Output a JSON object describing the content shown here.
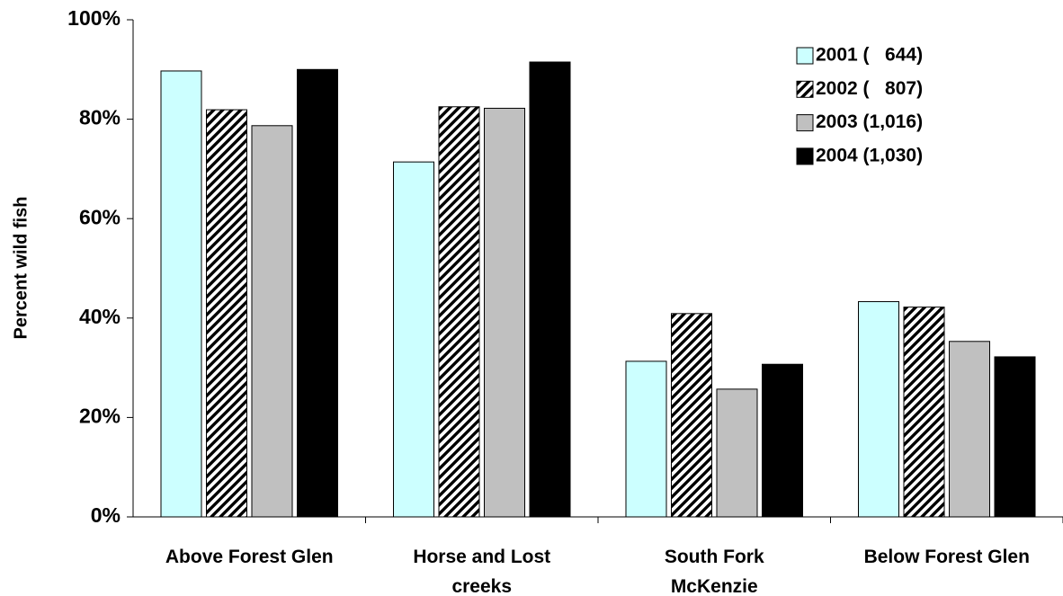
{
  "chart_data": {
    "type": "bar",
    "categories": [
      [
        "Above Forest Glen"
      ],
      [
        "Horse and Lost",
        "creeks"
      ],
      [
        "South Fork",
        "McKenzie"
      ],
      [
        "Below Forest Glen"
      ]
    ],
    "series": [
      {
        "name": "2001 (   644)",
        "values": [
          0.897,
          0.714,
          0.313,
          0.433
        ],
        "fill": "#ccffff",
        "pattern": "solid"
      },
      {
        "name": "2002 (   807)",
        "values": [
          0.819,
          0.825,
          0.409,
          0.422
        ],
        "fill": "#ffffff",
        "pattern": "diagonal-stripes"
      },
      {
        "name": "2003 (1,016)",
        "values": [
          0.787,
          0.822,
          0.257,
          0.353
        ],
        "fill": "#c0c0c0",
        "pattern": "solid"
      },
      {
        "name": "2004 (1,030)",
        "values": [
          0.9,
          0.915,
          0.307,
          0.322
        ],
        "fill": "#000000",
        "pattern": "solid"
      }
    ],
    "ylabel": "Percent wild fish",
    "xlabel": "",
    "title": "",
    "ylim": [
      0,
      1
    ],
    "yticks": [
      "0%",
      "20%",
      "40%",
      "60%",
      "80%",
      "100%"
    ],
    "grid": false,
    "legend_position": "top-right"
  }
}
